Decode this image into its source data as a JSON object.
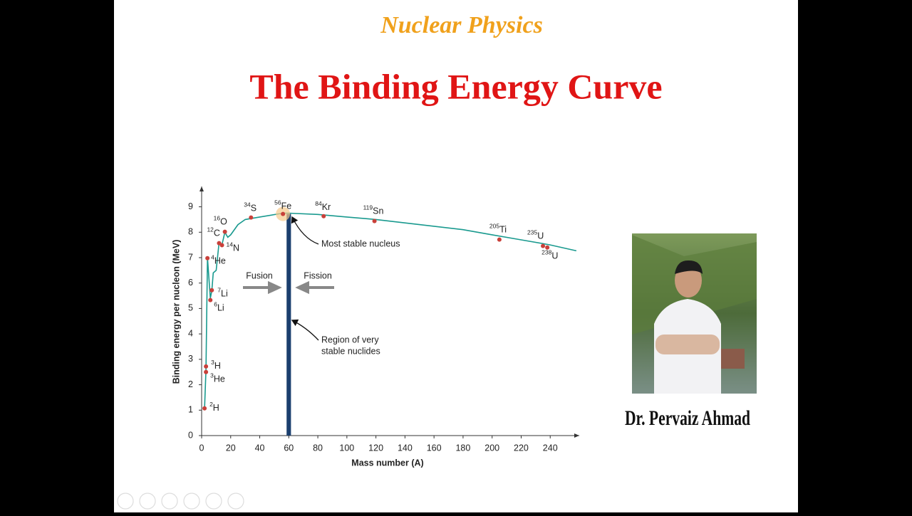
{
  "slide": {
    "subtitle": "Nuclear Physics",
    "title": "The Binding Energy Curve",
    "author": "Dr. Pervaiz Ahmad"
  },
  "chart_data": {
    "type": "scatter",
    "x_label": "Mass number (A)",
    "y_label": "Binding energy per nucleon (MeV)",
    "xlim": [
      0,
      260
    ],
    "ylim": [
      0,
      9.8
    ],
    "xticks": [
      0,
      20,
      40,
      60,
      80,
      100,
      120,
      140,
      160,
      180,
      200,
      220,
      240
    ],
    "yticks": [
      0,
      1,
      2,
      3,
      4,
      5,
      6,
      7,
      8,
      9
    ],
    "curve": {
      "color": "#1a9a8f",
      "x": [
        2,
        3,
        4,
        5,
        6,
        7,
        8,
        10,
        12,
        14,
        16,
        18,
        20,
        25,
        30,
        40,
        56,
        60,
        80,
        100,
        120,
        150,
        180,
        200,
        220,
        240,
        258
      ],
      "values": [
        1.07,
        2.6,
        7.0,
        6.2,
        5.4,
        5.7,
        6.4,
        6.5,
        7.6,
        7.5,
        8.0,
        7.8,
        7.9,
        8.3,
        8.5,
        8.6,
        8.75,
        8.75,
        8.7,
        8.6,
        8.5,
        8.3,
        8.1,
        7.9,
        7.7,
        7.5,
        7.27
      ]
    },
    "series": [
      {
        "color": "#c9403a",
        "x": [
          2,
          3,
          3,
          4,
          6,
          7,
          12,
          14,
          16,
          34,
          56,
          84,
          119,
          205,
          235,
          238
        ],
        "values": [
          1.07,
          2.5,
          2.72,
          6.98,
          5.33,
          5.72,
          7.57,
          7.49,
          8.02,
          8.58,
          8.72,
          8.63,
          8.44,
          7.71,
          7.46,
          7.4
        ],
        "label_mass": [
          "2",
          "3",
          "3",
          "4",
          "6",
          "7",
          "12",
          "14",
          "16",
          "34",
          "56",
          "84",
          "119",
          "205",
          "235",
          "238"
        ],
        "label_symbol": [
          "H",
          "He",
          "H",
          "He",
          "Li",
          "Li",
          "C",
          "N",
          "O",
          "S",
          "Fe",
          "Kr",
          "Sn",
          "Ti",
          "U",
          "U"
        ]
      }
    ],
    "stable_region": {
      "x": [
        58,
        62
      ],
      "color": "#1b3f6e"
    },
    "annotations": {
      "most_stable": "Most stable nucleus",
      "region": [
        "Region of very",
        "stable nuclides"
      ],
      "fusion": "Fusion",
      "fission": "Fission"
    }
  }
}
